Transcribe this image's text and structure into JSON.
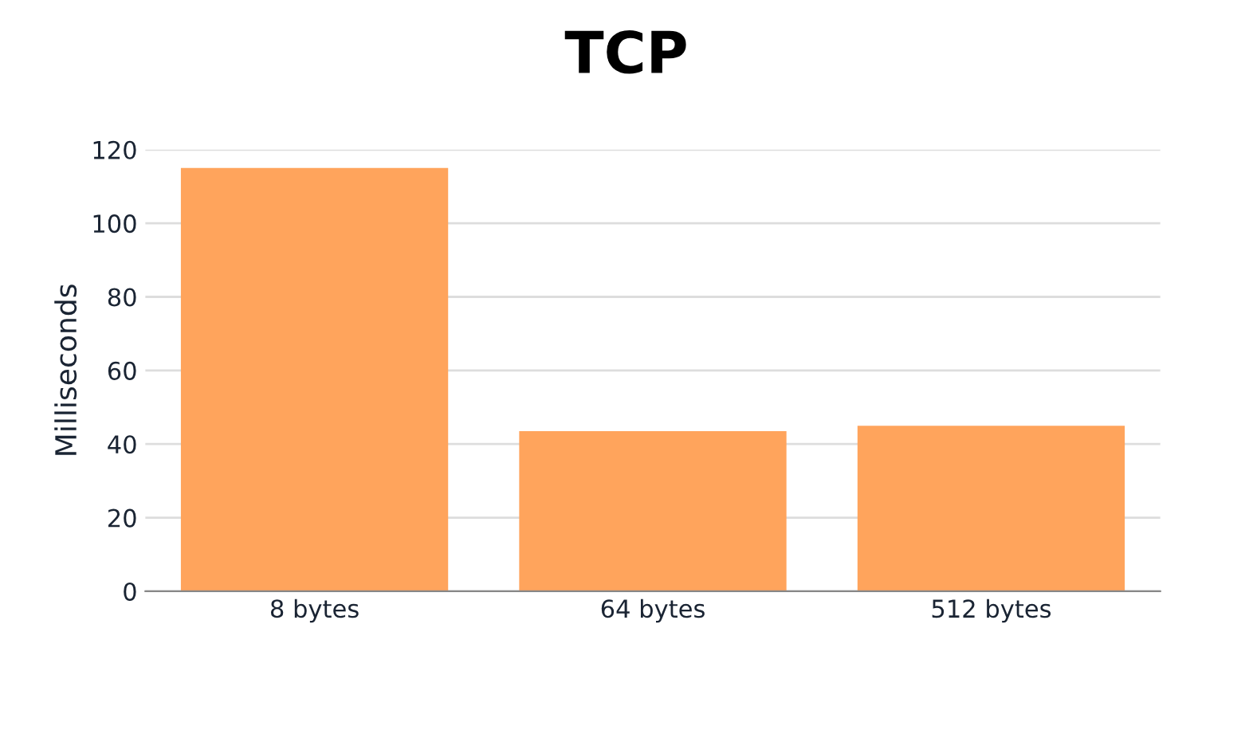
{
  "chart_data": {
    "type": "bar",
    "title": "TCP",
    "ylabel": "Milliseconds",
    "categories": [
      "8 bytes",
      "64 bytes",
      "512 bytes"
    ],
    "values": [
      115,
      43.5,
      45
    ],
    "color": "#ffa45c",
    "ylim": [
      0,
      120
    ],
    "yticks": [
      0,
      20,
      40,
      60,
      80,
      100,
      120
    ],
    "grid": "y"
  }
}
